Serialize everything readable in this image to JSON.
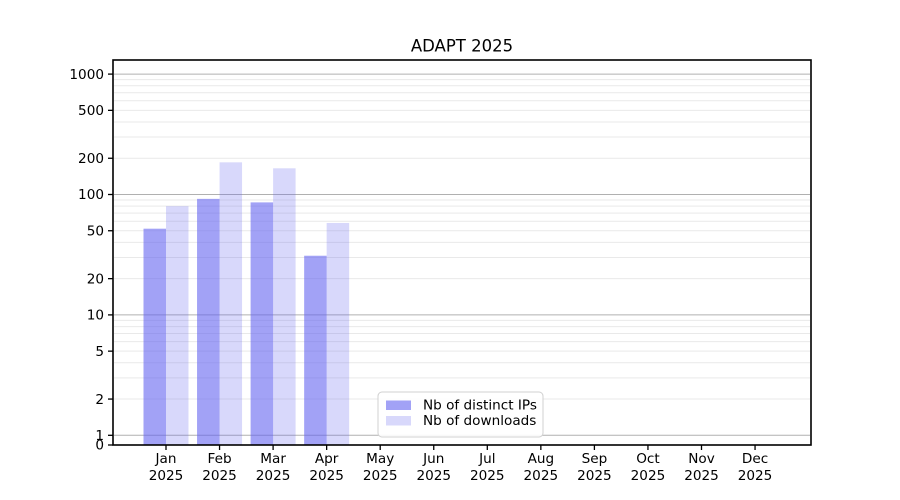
{
  "chart_data": {
    "type": "bar",
    "title": "ADAPT 2025",
    "categories": [
      "Jan 2025",
      "Feb 2025",
      "Mar 2025",
      "Apr 2025",
      "May 2025",
      "Jun 2025",
      "Jul 2025",
      "Aug 2025",
      "Sep 2025",
      "Oct 2025",
      "Nov 2025",
      "Dec 2025"
    ],
    "series": [
      {
        "name": "Nb of distinct IPs",
        "color": "#6464f0",
        "opacity": 0.6,
        "rendered_color": "#a2a2f1",
        "values": [
          52,
          92,
          86,
          31,
          null,
          null,
          null,
          null,
          null,
          null,
          null,
          null
        ]
      },
      {
        "name": "Nb of downloads",
        "color": "#6464f0",
        "opacity": 0.25,
        "rendered_color": "#d9d9f8",
        "values": [
          80,
          185,
          165,
          58,
          null,
          null,
          null,
          null,
          null,
          null,
          null,
          null
        ]
      }
    ],
    "y_axis": {
      "scale": "log",
      "ticks": [
        0,
        1,
        2,
        5,
        10,
        20,
        50,
        100,
        200,
        500,
        1000
      ],
      "top_value": 1310,
      "grid": "major+minor"
    },
    "x_axis": {
      "label_lines": 2
    },
    "legend": {
      "position": "lower-center-left",
      "entries": [
        "Nb of distinct IPs",
        "Nb of downloads"
      ]
    },
    "colors": {
      "major_grid": "#b0b0b0",
      "minor_grid": "#e9e9e9",
      "axis": "#000000",
      "background": "#ffffff",
      "legend_border": "#d0d0d0"
    }
  }
}
